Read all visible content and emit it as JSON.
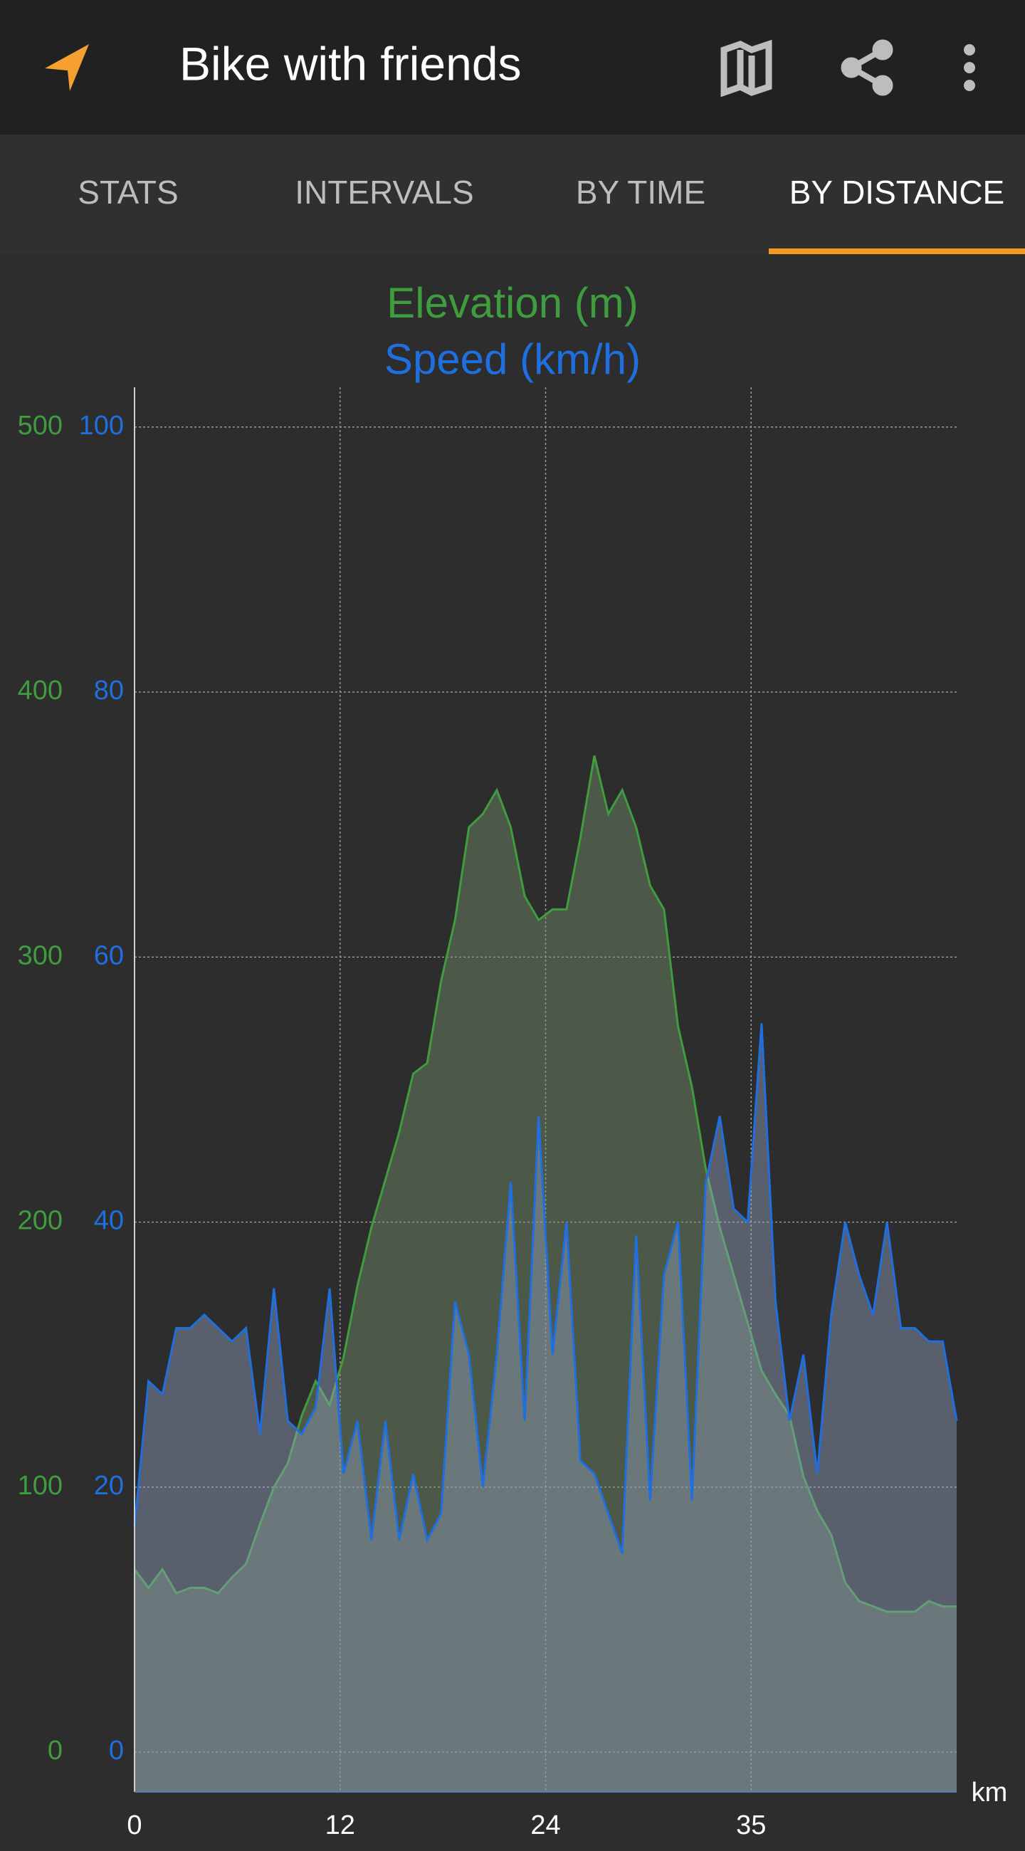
{
  "app_bar": {
    "title": "Bike with friends"
  },
  "tabs": [
    "STATS",
    "INTERVALS",
    "BY TIME",
    "BY DISTANCE"
  ],
  "selected_tab": 3,
  "chart_data": {
    "type": "area",
    "x_label": "km",
    "x": [
      0,
      0.8,
      1.6,
      2.4,
      3.2,
      4.0,
      4.8,
      5.6,
      6.4,
      7.2,
      8.0,
      8.8,
      9.6,
      10.4,
      11.2,
      12.0,
      12.8,
      13.6,
      14.4,
      15.2,
      16.0,
      16.8,
      17.6,
      18.4,
      19.2,
      20.0,
      20.8,
      21.6,
      22.4,
      23.2,
      24.0,
      24.8,
      25.6,
      26.4,
      27.2,
      28.0,
      28.8,
      29.6,
      30.4,
      31.2,
      32.0,
      32.8,
      33.6,
      34.4,
      35.2,
      36.0,
      36.8,
      37.6,
      38.4,
      39.2,
      40.0,
      40.8,
      41.6,
      42.4,
      43.2,
      44.0,
      44.8,
      45.6,
      46.4,
      47.2
    ],
    "series": [
      {
        "name": "Elevation (m)",
        "color": "#3f9c3f",
        "axis": "y",
        "values": [
          69,
          62,
          69,
          60,
          62,
          62,
          60,
          66,
          71,
          86,
          100,
          109,
          127,
          140,
          131,
          149,
          176,
          198,
          216,
          234,
          256,
          260,
          291,
          314,
          349,
          354,
          363,
          349,
          323,
          314,
          318,
          318,
          345,
          376,
          354,
          363,
          349,
          327,
          318,
          274,
          251,
          220,
          198,
          180,
          162,
          144,
          135,
          127,
          104,
          91,
          82,
          64,
          57,
          55,
          53,
          53,
          53,
          57,
          55,
          55
        ]
      },
      {
        "name": "Speed (km/h)",
        "color": "#1f6fe0",
        "axis": "y2",
        "values": [
          17,
          28,
          27,
          32,
          32,
          33,
          32,
          31,
          32,
          24,
          35,
          25,
          24,
          26,
          35,
          21,
          25,
          16,
          25,
          16,
          21,
          16,
          18,
          34,
          30,
          20,
          30,
          43,
          25,
          48,
          30,
          40,
          22,
          21,
          18,
          15,
          39,
          19,
          36,
          40,
          19,
          43,
          48,
          41,
          40,
          55,
          34,
          25,
          30,
          21,
          33,
          40,
          36,
          33,
          40,
          32,
          32,
          31,
          31,
          25
        ]
      }
    ],
    "xlim": [
      0,
      47.2
    ],
    "xticks": [
      0,
      {
        "value": 11.8,
        "label": "12"
      },
      {
        "value": 23.6,
        "label": "24"
      },
      {
        "value": 35.4,
        "label": "35"
      }
    ],
    "ylim": [
      -15,
      515
    ],
    "yticks": [
      0,
      100,
      200,
      300,
      400,
      500
    ],
    "y2lim": [
      -3,
      103
    ],
    "y2ticks": [
      0,
      20,
      40,
      60,
      80,
      100
    ],
    "grid": true
  }
}
